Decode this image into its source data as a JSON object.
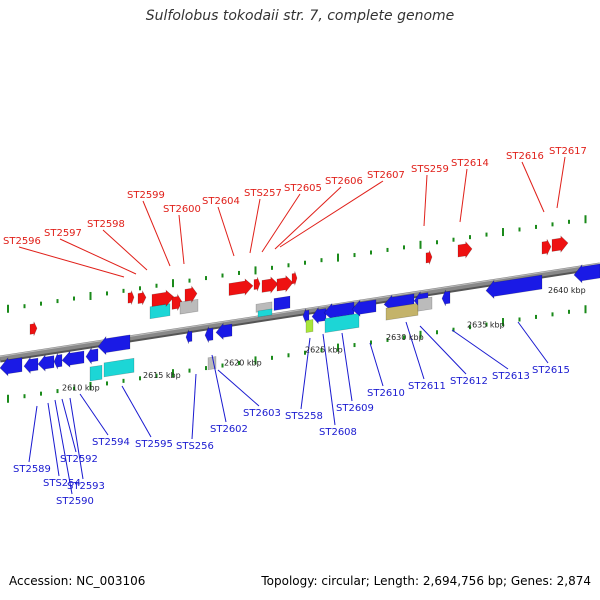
{
  "title": "Sulfolobus tokodaii str. 7, complete genome",
  "footer": {
    "accession": "Accession: NC_003106",
    "summary": "Topology: circular; Length: 2,694,756 bp; Genes: 2,874"
  },
  "colors": {
    "top_label": "#e0201a",
    "bottom_label": "#1a1ad0",
    "red": "#ee1111",
    "blue": "#1a1ae6",
    "cyan": "#1cd6d6",
    "gray": "#bbbbbb",
    "olive": "#c4b36a",
    "lime": "#a8e63a",
    "tick": "#1a8a1a",
    "axis": "#888888"
  },
  "ruler": [
    {
      "label": "2610 kbp",
      "kbp": 2610
    },
    {
      "label": "2615 kbp",
      "kbp": 2615
    },
    {
      "label": "2620 kbp",
      "kbp": 2620
    },
    {
      "label": "2625 kbp",
      "kbp": 2625
    },
    {
      "label": "2630 kbp",
      "kbp": 2630
    },
    {
      "label": "2635 kbp",
      "kbp": 2635
    },
    {
      "label": "2640 kbp",
      "kbp": 2640
    }
  ],
  "top_genes": [
    "ST2596",
    "ST2597",
    "ST2598",
    "ST2599",
    "ST2600",
    "ST2604",
    "STS257",
    "ST2605",
    "ST2606",
    "ST2607",
    "STS259",
    "ST2614",
    "ST2616",
    "ST2617"
  ],
  "bottom_genes": [
    "ST2589",
    "STS254",
    "ST2590",
    "ST2592",
    "ST2593",
    "ST2594",
    "ST2595",
    "STS256",
    "ST2602",
    "ST2603",
    "STS258",
    "ST2608",
    "ST2609",
    "ST2610",
    "ST2611",
    "ST2612",
    "ST2613",
    "ST2615"
  ]
}
